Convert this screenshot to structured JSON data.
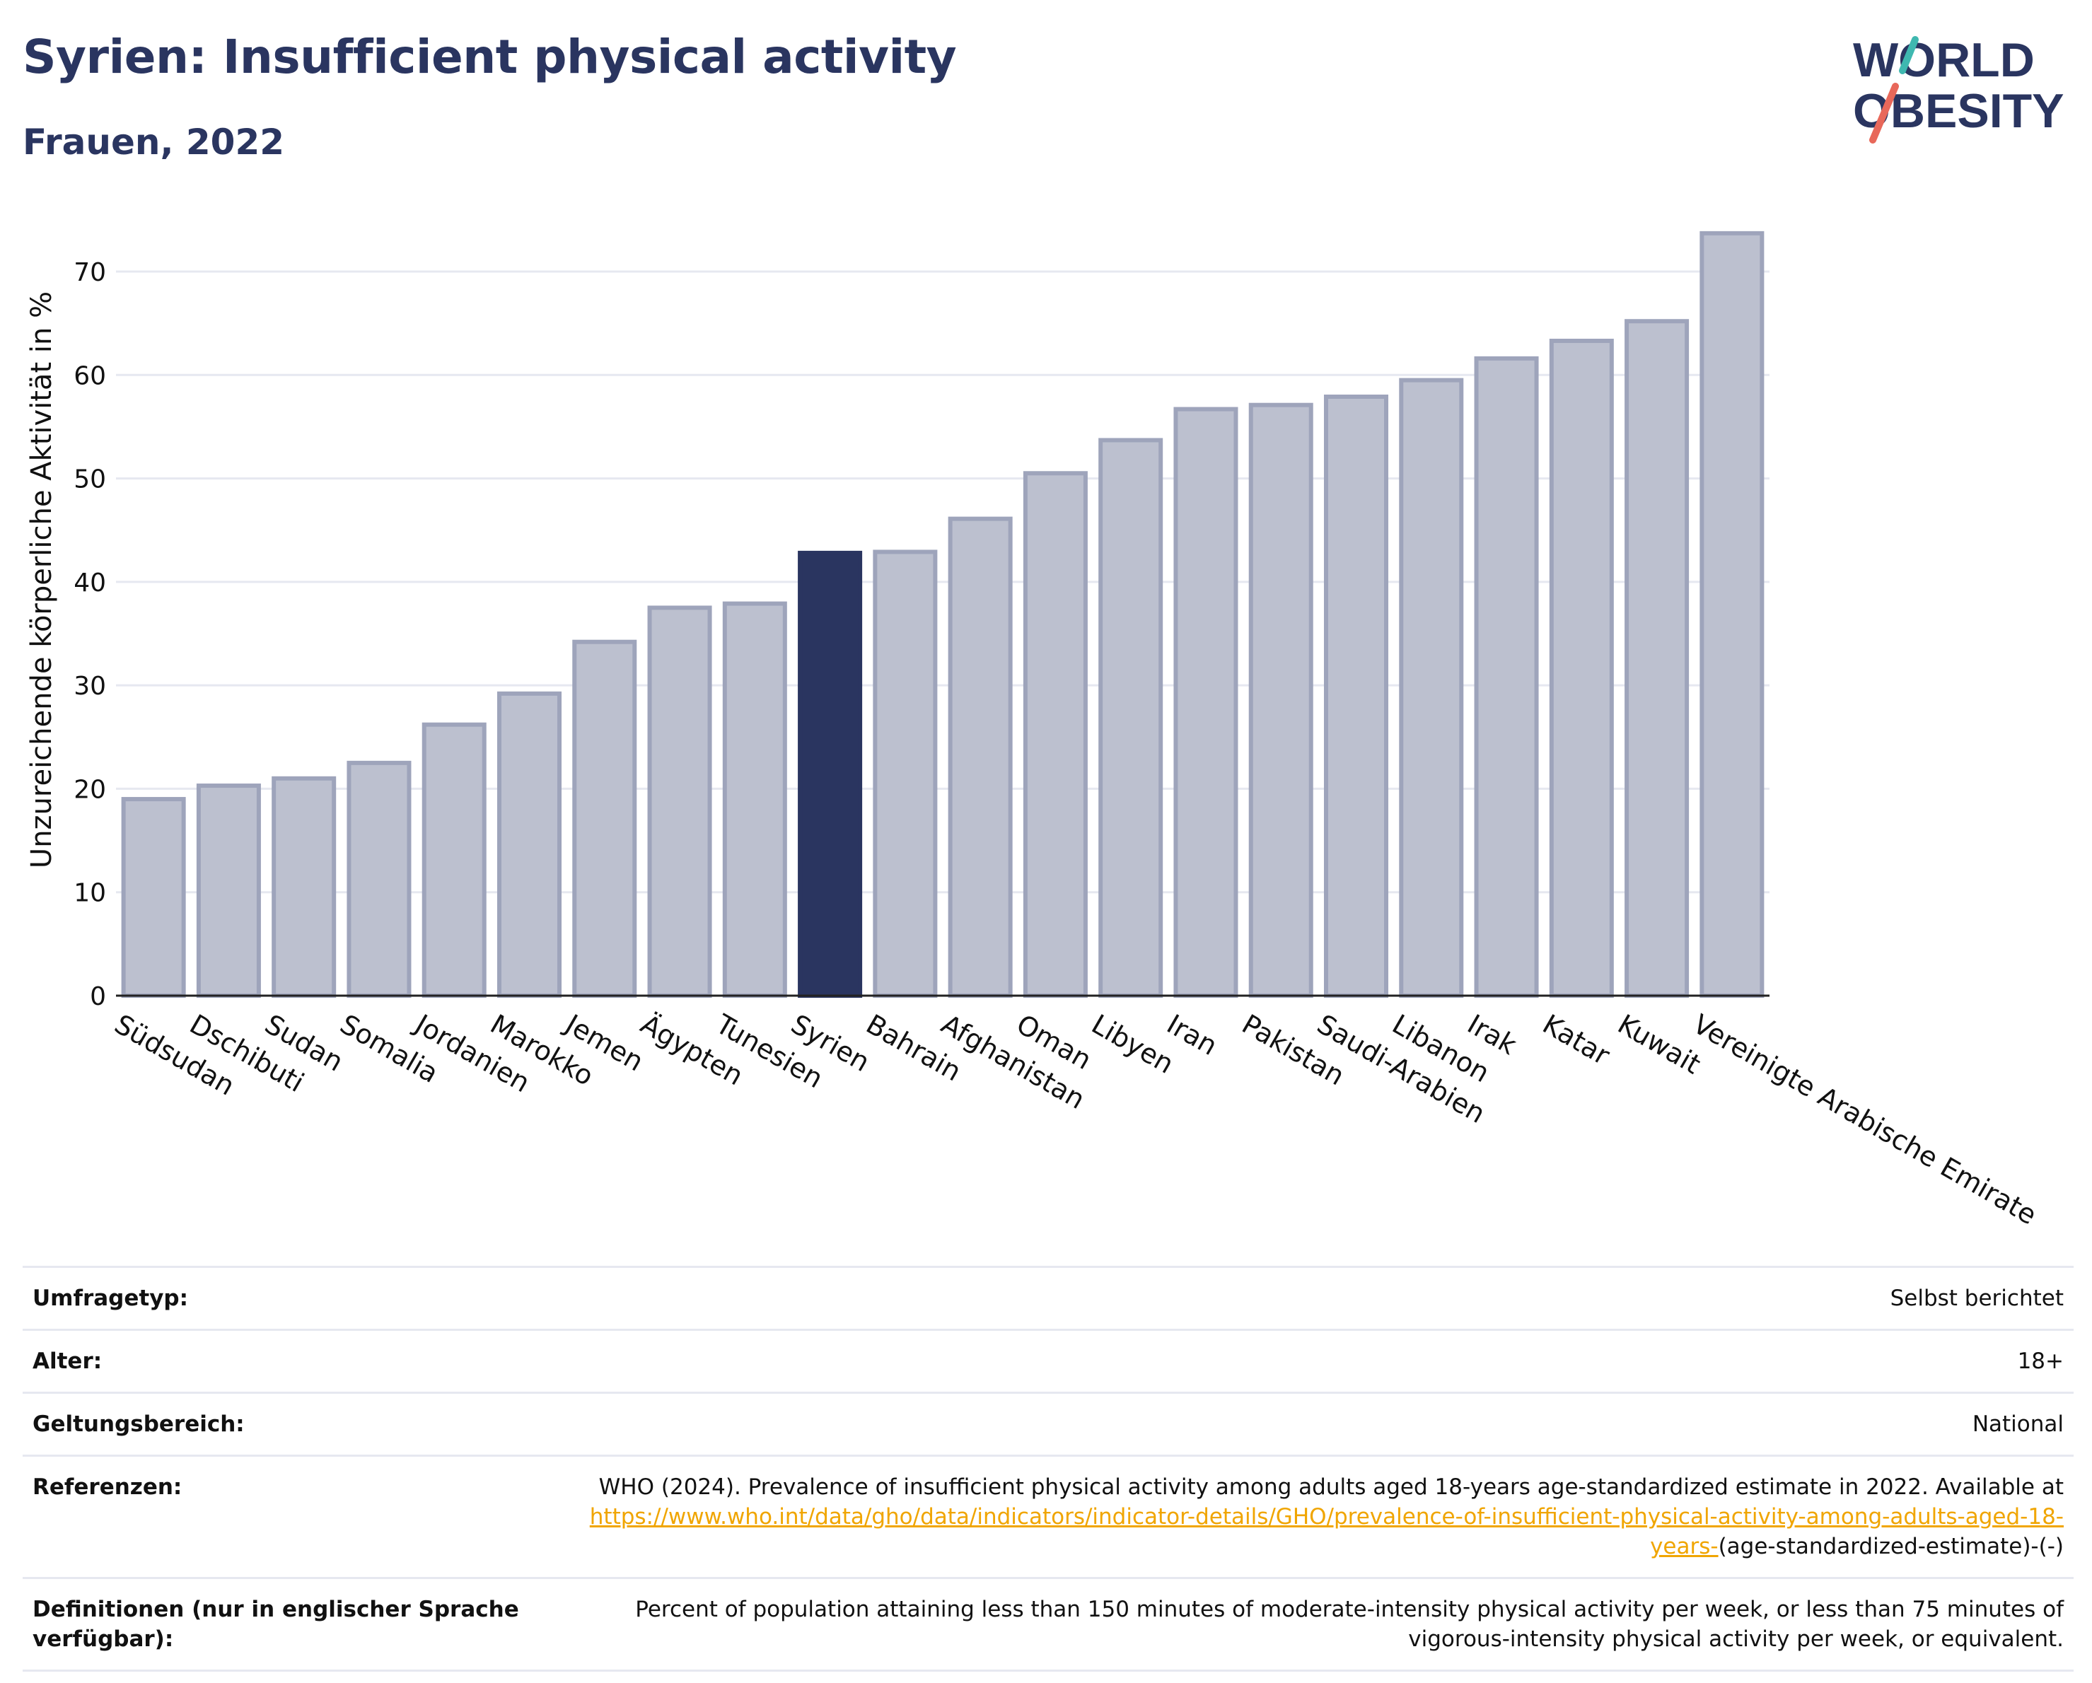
{
  "header": {
    "title": "Syrien: Insufficient physical activity",
    "subtitle": "Frauen, 2022"
  },
  "logo": {
    "line1": "WORLD",
    "line2": "OBESITY",
    "colors": {
      "text": "#2a3560",
      "slash_red": "#e8685a",
      "slash_teal": "#3fb8b0"
    }
  },
  "colors": {
    "bar": "#bcc0cf",
    "bar_border": "#9ea4bb",
    "highlight": "#2a3560",
    "grid": "#e6e8f0",
    "axis": "#222222"
  },
  "chart_data": {
    "type": "bar",
    "ylabel": "Unzureichende körperliche Aktivität in %",
    "xlabel": "",
    "ylim": [
      0,
      75
    ],
    "yticks": [
      0,
      10,
      20,
      30,
      40,
      50,
      60,
      70
    ],
    "grid": true,
    "highlight": "Syrien",
    "categories": [
      "Südsudan",
      "Dschibuti",
      "Sudan",
      "Somalia",
      "Jordanien",
      "Marokko",
      "Jemen",
      "Ägypten",
      "Tunesien",
      "Syrien",
      "Bahrain",
      "Afghanistan",
      "Oman",
      "Libyen",
      "Iran",
      "Pakistan",
      "Saudi-Arabien",
      "Libanon",
      "Irak",
      "Katar",
      "Kuwait",
      "Vereinigte Arabische Emirate"
    ],
    "values": [
      19.0,
      20.3,
      21.0,
      22.5,
      26.2,
      29.2,
      34.2,
      37.5,
      37.9,
      42.8,
      42.9,
      46.1,
      50.5,
      53.7,
      56.7,
      57.1,
      57.9,
      59.5,
      61.6,
      63.3,
      65.2,
      73.7
    ]
  },
  "info": {
    "survey_label": "Umfragetyp:",
    "survey_value": "Selbst berichtet",
    "age_label": "Alter:",
    "age_value": "18+",
    "coverage_label": "Geltungsbereich:",
    "coverage_value": "National",
    "references_label": "Referenzen:",
    "references_text": "WHO (2024). Prevalence of insufficient physical activity among adults aged 18-years age-standardized estimate in 2022. Available at",
    "references_link": "https://www.who.int/data/gho/data/indicators/indicator-details/GHO/prevalence-of-insufficient-physical-activity-among-adults-aged-18-years-",
    "references_suffix": "(age-standardized-estimate)-(-)",
    "definitions_label": "Definitionen (nur in englischer Sprache verfügbar):",
    "definitions_value": "Percent of population attaining less than 150 minutes of moderate-intensity physical activity per week, or less than 75 minutes of vigorous-intensity physical activity per week, or equivalent."
  }
}
